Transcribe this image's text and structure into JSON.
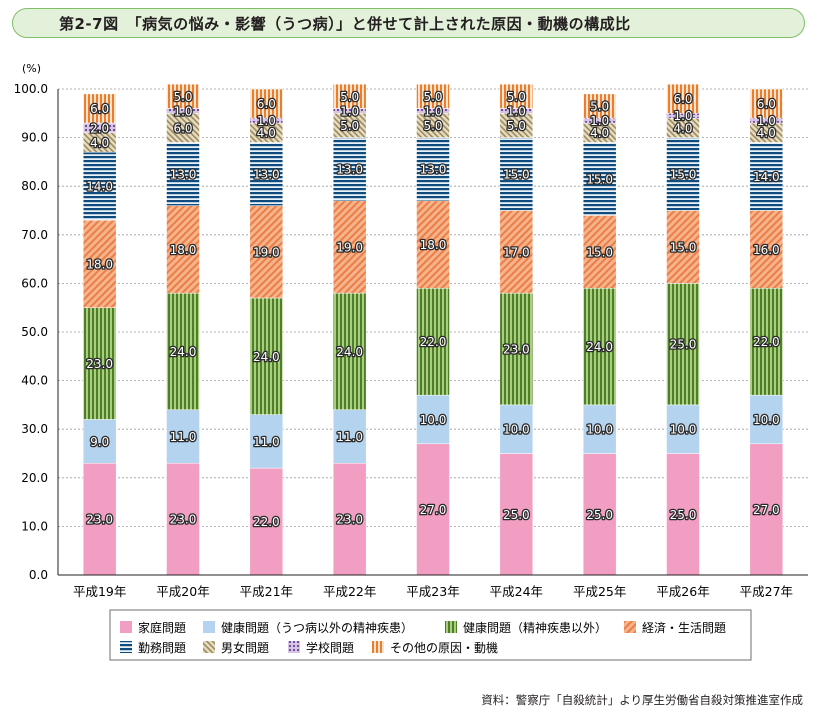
{
  "title": "第2-7図　「病気の悩み・影響（うつ病）」と併せて計上された原因・動機の構成比",
  "source": "資料：警察庁「自殺統計」より厚生労働省自殺対策推進室作成",
  "colors": {
    "family": "#f19ec2",
    "health_other": "#b3d3ef",
    "health_mental": "#8dbb56",
    "economy": "#f29c6b",
    "work": "#1f5e8e",
    "gender": "#c8b894",
    "school": "#9a73b6",
    "other": "#ec8a3c",
    "title_bg": "#e3f1da",
    "title_border": "#7fbf6a"
  },
  "chart_data": {
    "type": "bar",
    "stacked": true,
    "unit_label": "(%)",
    "categories": [
      "平成19年",
      "平成20年",
      "平成21年",
      "平成22年",
      "平成23年",
      "平成24年",
      "平成25年",
      "平成26年",
      "平成27年"
    ],
    "y_ticks": [
      "0.0",
      "10.0",
      "20.0",
      "30.0",
      "40.0",
      "50.0",
      "60.0",
      "70.0",
      "80.0",
      "90.0",
      "100.0"
    ],
    "ylim": [
      0,
      100
    ],
    "series": [
      {
        "key": "family",
        "name": "家庭問題",
        "values": [
          23.0,
          23.0,
          22.0,
          23.0,
          27.0,
          25.0,
          25.0,
          25.0,
          27.0
        ],
        "labels": [
          "23.0",
          "23.0",
          "22.0",
          "23.0",
          "27.0",
          "25.0",
          "25.0",
          "25.0",
          "27.0"
        ]
      },
      {
        "key": "health_other",
        "name": "健康問題（うつ病以外の精神疾患）",
        "values": [
          9.0,
          11.0,
          11.0,
          11.0,
          10.0,
          10.0,
          10.0,
          10.0,
          10.0
        ],
        "labels": [
          "9.0",
          "11.0",
          "11.0",
          "11.0",
          "10.0",
          "10.0",
          "10.0",
          "10.0",
          "10.0"
        ]
      },
      {
        "key": "health_mental",
        "name": "健康問題（精神疾患以外）",
        "values": [
          23.0,
          24.0,
          24.0,
          24.0,
          22.0,
          23.0,
          24.0,
          25.0,
          22.0
        ],
        "labels": [
          "23.0",
          "24.0",
          "24.0",
          "24.0",
          "22.0",
          "23.0",
          "24.0",
          "25.0",
          "22.0"
        ]
      },
      {
        "key": "economy",
        "name": "経済・生活問題",
        "values": [
          18.0,
          18.0,
          19.0,
          19.0,
          18.0,
          17.0,
          15.0,
          15.0,
          16.0
        ],
        "labels": [
          "18.0",
          "18.0",
          "19.0",
          "19.0",
          "18.0",
          "17.0",
          "15.0",
          "15.0",
          "16.0"
        ]
      },
      {
        "key": "work",
        "name": "勤務問題",
        "values": [
          14.0,
          13.0,
          13.0,
          13.0,
          13.0,
          15.0,
          15.0,
          15.0,
          14.0
        ],
        "labels": [
          "14.0",
          "13.0",
          "13.0",
          "13.0",
          "13.0",
          "15.0",
          "15.0",
          "15.0",
          "14.0"
        ]
      },
      {
        "key": "gender",
        "name": "男女問題",
        "values": [
          4.0,
          6.0,
          4.0,
          5.0,
          5.0,
          5.0,
          4.0,
          4.0,
          4.0
        ],
        "labels": [
          "4.0",
          "6.0",
          "4.0",
          "5.0",
          "5.0",
          "5.0",
          "4.0",
          "4.0",
          "4.0"
        ]
      },
      {
        "key": "school",
        "name": "学校問題",
        "values": [
          2.0,
          1.0,
          1.0,
          1.0,
          1.0,
          1.0,
          1.0,
          1.0,
          1.0
        ],
        "labels": [
          "2.0",
          "1.0",
          "1.0",
          "1.0",
          "1.0",
          "1.0",
          "1.0",
          "1.0",
          "1.0"
        ]
      },
      {
        "key": "other",
        "name": "その他の原因・動機",
        "values": [
          6.0,
          5.0,
          6.0,
          5.0,
          5.0,
          5.0,
          5.0,
          6.0,
          6.0
        ],
        "labels": [
          "6.0",
          "5.0",
          "6.0",
          "5.0",
          "5.0",
          "5.0",
          "5.0",
          "6.0",
          "6.0"
        ]
      }
    ],
    "legend_rows": [
      [
        "family",
        "health_other",
        "health_mental",
        "economy"
      ],
      [
        "work",
        "gender",
        "school",
        "other"
      ]
    ],
    "legend_position": "bottom"
  }
}
